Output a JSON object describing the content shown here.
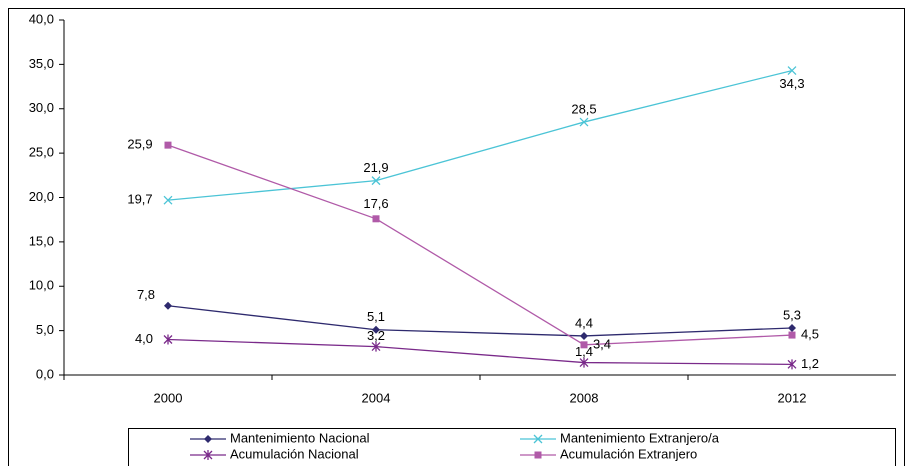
{
  "chart_data": {
    "type": "line",
    "categories": [
      "2000",
      "2004",
      "2008",
      "2012"
    ],
    "ylim": [
      0,
      40
    ],
    "yticks": [
      {
        "value": 0,
        "label": "0,0"
      },
      {
        "value": 5,
        "label": "5,0"
      },
      {
        "value": 10,
        "label": "10,0"
      },
      {
        "value": 15,
        "label": "15,0"
      },
      {
        "value": 20,
        "label": "20,0"
      },
      {
        "value": 25,
        "label": "25,0"
      },
      {
        "value": 30,
        "label": "30,0"
      },
      {
        "value": 35,
        "label": "35,0"
      },
      {
        "value": 40,
        "label": "40,0"
      }
    ],
    "legend": "bottom",
    "series": [
      {
        "name": "Mantenimiento Nacional",
        "color": "#2e2a6e",
        "marker": "diamond",
        "values": [
          7.8,
          5.1,
          4.4,
          5.3
        ],
        "value_labels": [
          "7,8",
          "5,1",
          "4,4",
          "5,3"
        ]
      },
      {
        "name": "Mantenimiento Extranjero/a",
        "color": "#4bc4d6",
        "marker": "x",
        "values": [
          19.7,
          21.9,
          28.5,
          34.3
        ],
        "value_labels": [
          "19,7",
          "21,9",
          "28,5",
          "34,3"
        ]
      },
      {
        "name": "Acumulación Nacional",
        "color": "#7a2a8a",
        "marker": "star",
        "values": [
          4.0,
          3.2,
          1.4,
          1.2
        ],
        "value_labels": [
          "4,0",
          "3,2",
          "1,4",
          "1,2"
        ]
      },
      {
        "name": "Acumulación Extranjero",
        "color": "#b05aa8",
        "marker": "square",
        "values": [
          25.9,
          17.6,
          3.4,
          4.5
        ],
        "value_labels": [
          "25,9",
          "17,6",
          "3,4",
          "4,5"
        ]
      }
    ]
  }
}
